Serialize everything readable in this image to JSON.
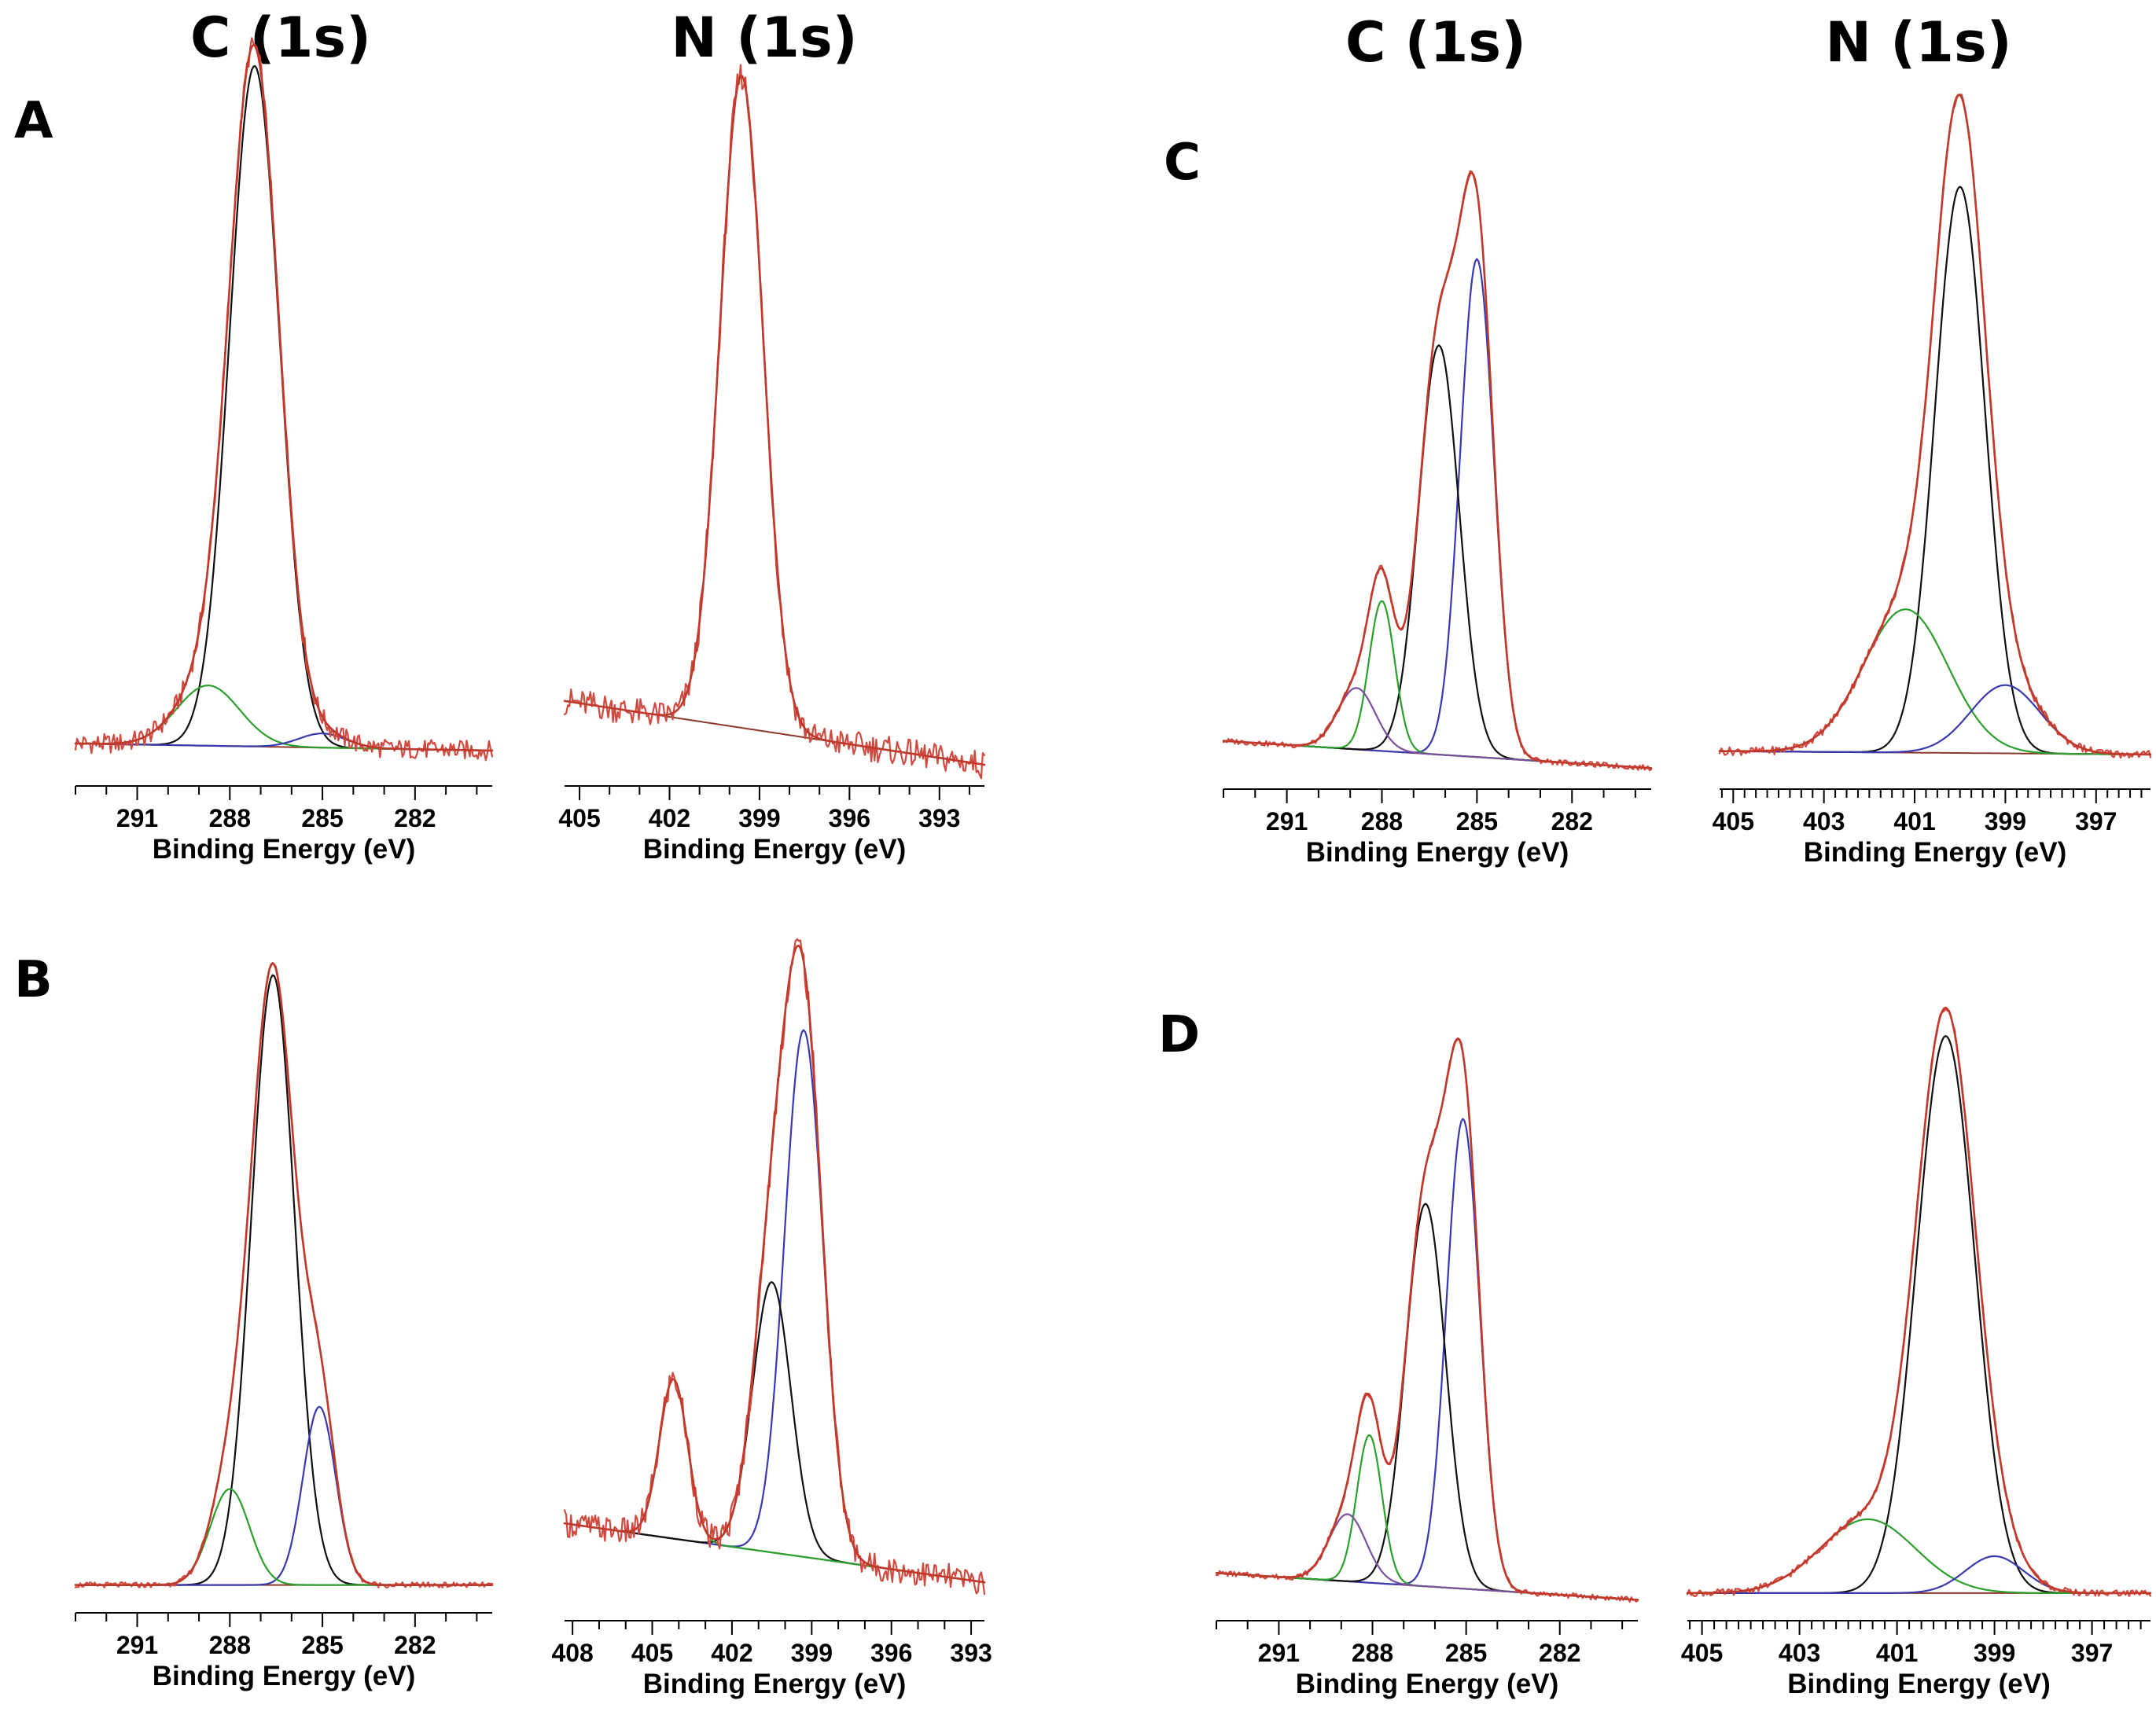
{
  "colors": {
    "envelope": "#c0392b",
    "raw": "#d04a40",
    "black": "#111111",
    "blue": "#3a3ab0",
    "green": "#2ca02c",
    "purple": "#7b4fa0",
    "baseline": "#8b3a2a"
  },
  "column_titles": [
    "C (1s)",
    "N (1s)",
    "C (1s)",
    "N (1s)"
  ],
  "chart_data": [
    {
      "id": "A-C1s",
      "panel_letter": "A",
      "type": "line",
      "xlabel": "Binding Energy (eV)",
      "xlim": [
        293,
        279.5
      ],
      "minor_ticks": false,
      "ticks": [
        291,
        288,
        285,
        282
      ],
      "baseline": [
        0.04,
        0.03
      ],
      "noise": 0.014,
      "components": [
        {
          "color": "black",
          "center": 287.2,
          "height": 0.96,
          "fwhm": 1.9
        },
        {
          "color": "green",
          "center": 288.7,
          "height": 0.085,
          "fwhm": 2.4
        },
        {
          "color": "blue",
          "center": 285.0,
          "height": 0.02,
          "fwhm": 1.8
        }
      ]
    },
    {
      "id": "A-N1s",
      "panel_letter": "",
      "type": "line",
      "xlabel": "Binding Energy (eV)",
      "xlim": [
        405.5,
        391.5
      ],
      "minor_ticks": false,
      "ticks": [
        405,
        402,
        399,
        396,
        393
      ],
      "baseline": [
        0.1,
        0.01
      ],
      "noise": 0.02,
      "components": [
        {
          "color": "blue",
          "center": 399.6,
          "height": 0.92,
          "fwhm": 1.7
        }
      ]
    },
    {
      "id": "C-C1s",
      "panel_letter": "C",
      "type": "line",
      "xlabel": "Binding Energy (eV)",
      "xlim": [
        293,
        279.5
      ],
      "minor_ticks": false,
      "ticks": [
        291,
        288,
        285,
        282
      ],
      "baseline": [
        0.05,
        0.01
      ],
      "noise": 0.004,
      "components": [
        {
          "color": "blue",
          "center": 285.0,
          "height": 0.73,
          "fwhm": 1.25
        },
        {
          "color": "black",
          "center": 286.2,
          "height": 0.6,
          "fwhm": 1.5
        },
        {
          "color": "green",
          "center": 288.0,
          "height": 0.22,
          "fwhm": 0.95
        },
        {
          "color": "purple",
          "center": 288.8,
          "height": 0.09,
          "fwhm": 1.4
        }
      ]
    },
    {
      "id": "C-N1s",
      "panel_letter": "",
      "type": "line",
      "xlabel": "Binding Energy (eV)",
      "xlim": [
        405.3,
        395.8
      ],
      "minor_ticks": true,
      "ticks": [
        405,
        403,
        401,
        399,
        397
      ],
      "baseline": [
        0.035,
        0.03
      ],
      "noise": 0.006,
      "components": [
        {
          "color": "black",
          "center": 400.0,
          "height": 0.83,
          "fwhm": 1.3
        },
        {
          "color": "green",
          "center": 401.2,
          "height": 0.21,
          "fwhm": 2.2
        },
        {
          "color": "blue",
          "center": 399.0,
          "height": 0.1,
          "fwhm": 1.8
        }
      ]
    },
    {
      "id": "B-C1s",
      "panel_letter": "B",
      "type": "line",
      "xlabel": "Binding Energy (eV)",
      "xlim": [
        293,
        279.5
      ],
      "minor_ticks": false,
      "ticks": [
        291,
        288,
        285,
        282
      ],
      "baseline": [
        0.02,
        0.02
      ],
      "noise": 0.004,
      "components": [
        {
          "color": "black",
          "center": 286.6,
          "height": 0.89,
          "fwhm": 1.65
        },
        {
          "color": "blue",
          "center": 285.1,
          "height": 0.26,
          "fwhm": 1.25
        },
        {
          "color": "green",
          "center": 288.0,
          "height": 0.14,
          "fwhm": 1.5
        }
      ]
    },
    {
      "id": "B-N1s",
      "panel_letter": "",
      "type": "line",
      "xlabel": "Binding Energy (eV)",
      "xlim": [
        408.3,
        392.5
      ],
      "minor_ticks": false,
      "ticks": [
        408,
        405,
        402,
        399,
        396,
        393
      ],
      "baseline": [
        0.12,
        0.035
      ],
      "noise": 0.02,
      "components": [
        {
          "color": "blue",
          "center": 399.3,
          "height": 0.76,
          "fwhm": 1.7
        },
        {
          "color": "black",
          "center": 400.5,
          "height": 0.39,
          "fwhm": 1.7
        },
        {
          "color": "green",
          "center": 404.2,
          "height": 0.23,
          "fwhm": 1.25
        }
      ]
    },
    {
      "id": "D-C1s",
      "panel_letter": "D",
      "type": "line",
      "xlabel": "Binding Energy (eV)",
      "xlim": [
        293,
        279.5
      ],
      "minor_ticks": false,
      "ticks": [
        291,
        288,
        285,
        282
      ],
      "baseline": [
        0.05,
        0.01
      ],
      "noise": 0.004,
      "components": [
        {
          "color": "blue",
          "center": 285.1,
          "height": 0.7,
          "fwhm": 1.25
        },
        {
          "color": "black",
          "center": 286.3,
          "height": 0.57,
          "fwhm": 1.5
        },
        {
          "color": "green",
          "center": 288.1,
          "height": 0.22,
          "fwhm": 0.95
        },
        {
          "color": "purple",
          "center": 288.8,
          "height": 0.1,
          "fwhm": 1.4
        }
      ]
    },
    {
      "id": "D-N1s",
      "panel_letter": "",
      "type": "line",
      "xlabel": "Binding Energy (eV)",
      "xlim": [
        405.3,
        395.8
      ],
      "minor_ticks": true,
      "ticks": [
        405,
        403,
        401,
        399,
        397
      ],
      "baseline": [
        0.02,
        0.02
      ],
      "noise": 0.005,
      "components": [
        {
          "color": "black",
          "center": 400.0,
          "height": 0.83,
          "fwhm": 1.4
        },
        {
          "color": "green",
          "center": 401.6,
          "height": 0.11,
          "fwhm": 2.3
        },
        {
          "color": "blue",
          "center": 399.0,
          "height": 0.055,
          "fwhm": 1.4
        }
      ]
    }
  ]
}
